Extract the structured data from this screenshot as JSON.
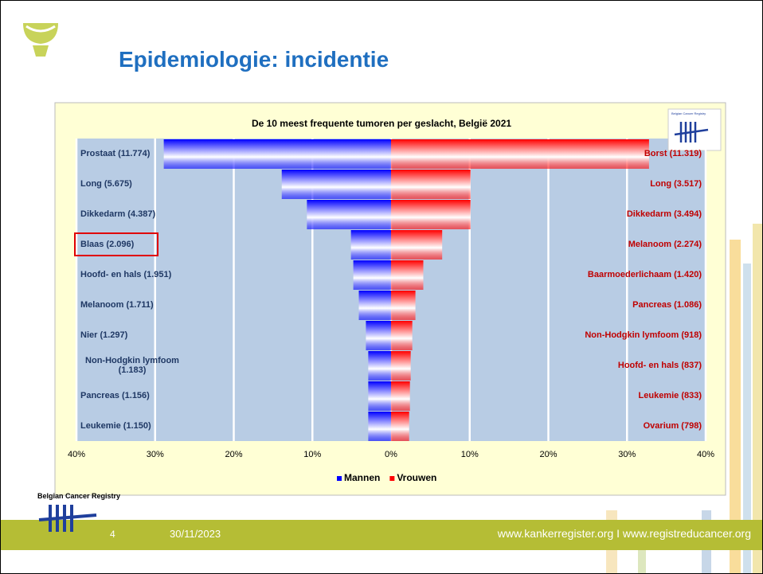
{
  "slide_title": "Epidemiologie: incidentie",
  "logo_text": "Belgian Cancer Registry",
  "footer": {
    "page": "4",
    "date": "30/11/2023",
    "url": "www.kankerregister.org I www.registreducancer.org"
  },
  "chart_data": {
    "type": "butterfly-bar",
    "title": "De 10 meest frequente tumoren per geslacht, België 2021",
    "logo_text": "Belgian Cancer Registry",
    "xlim": [
      -40,
      40
    ],
    "xticks": [
      {
        "value": -40,
        "label": "40%"
      },
      {
        "value": -30,
        "label": "30%"
      },
      {
        "value": -20,
        "label": "20%"
      },
      {
        "value": -10,
        "label": "10%"
      },
      {
        "value": 0,
        "label": "0%"
      },
      {
        "value": 10,
        "label": "10%"
      },
      {
        "value": 20,
        "label": "20%"
      },
      {
        "value": 30,
        "label": "30%"
      },
      {
        "value": 40,
        "label": "40%"
      }
    ],
    "grid": true,
    "series": [
      {
        "name": "Mannen",
        "color": "#0000ff",
        "side": "left",
        "labels": [
          "Prostaat (11.774)",
          "Long (5.675)",
          "Dikkedarm (4.387)",
          "Blaas (2.096)",
          "Hoofd- en hals (1.951)",
          "Melanoom (1.711)",
          "Nier (1.297)",
          "Non-Hodgkin lymfoom (1.183)",
          "Pancreas (1.156)",
          "Leukemie (1.150)"
        ],
        "values": [
          28.9,
          13.9,
          10.7,
          5.1,
          4.8,
          4.1,
          3.2,
          2.9,
          2.9,
          2.9
        ]
      },
      {
        "name": "Vrouwen",
        "color": "#ff0000",
        "side": "right",
        "labels": [
          "Borst (11.319)",
          "Long (3.517)",
          "Dikkedarm (3.494)",
          "Melanoom (2.274)",
          "Baarmoederlichaam (1.420)",
          "Pancreas (1.086)",
          "Non-Hodgkin lymfoom (918)",
          "Hoofd- en hals (837)",
          "Leukemie (833)",
          "Ovarium (798)"
        ],
        "values": [
          32.8,
          10.1,
          10.1,
          6.5,
          4.1,
          3.1,
          2.7,
          2.5,
          2.4,
          2.3
        ]
      }
    ]
  }
}
